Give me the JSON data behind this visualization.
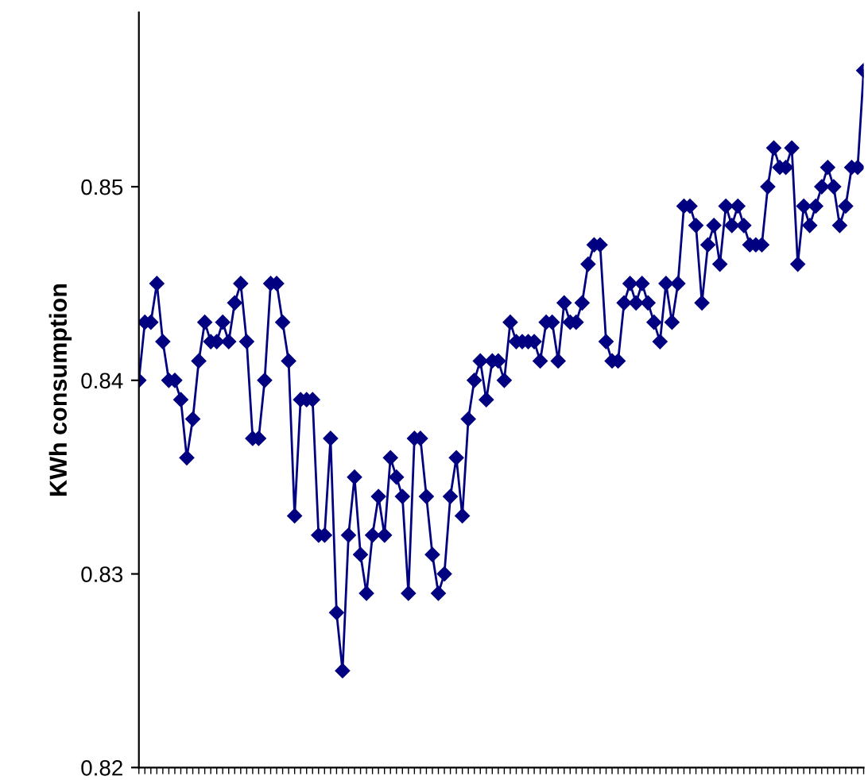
{
  "chart_data": {
    "type": "line",
    "ylabel": "KWh consumption",
    "ylim": [
      0.82,
      0.859
    ],
    "yticks": [
      0.82,
      0.83,
      0.84,
      0.85
    ],
    "tick_labels": "y",
    "grid": false,
    "legend": false,
    "marker": "diamond",
    "line_style": "solid",
    "categories": [
      null,
      null,
      null,
      null,
      null,
      null,
      null,
      null,
      null,
      null,
      null,
      null,
      null,
      null,
      null,
      null,
      null,
      null,
      null,
      null,
      null,
      null,
      null,
      null,
      null,
      null,
      null,
      null,
      null,
      null,
      null,
      null,
      null,
      null,
      null,
      null,
      null,
      null,
      null,
      null,
      null,
      null,
      null,
      null,
      null,
      null,
      null,
      null,
      null,
      null,
      null,
      null,
      null,
      null,
      null,
      null,
      null,
      null,
      null,
      null,
      null,
      null,
      null,
      null,
      null,
      null,
      null,
      null,
      null,
      null,
      null,
      null,
      null,
      null,
      null,
      null,
      null,
      null,
      null,
      null,
      null,
      null,
      null,
      null,
      null,
      null,
      null,
      null,
      null,
      null,
      null,
      null,
      null,
      null,
      null,
      null,
      null,
      null,
      null,
      null,
      null,
      null,
      null,
      null,
      null,
      null,
      null,
      null,
      null,
      null,
      null,
      null,
      null,
      null,
      null,
      null,
      null,
      null,
      null,
      null,
      null,
      null
    ],
    "series": [
      {
        "color": "#000080",
        "values": [
          0.84,
          0.843,
          0.843,
          0.845,
          0.842,
          0.84,
          0.84,
          0.839,
          0.836,
          0.838,
          0.841,
          0.843,
          0.842,
          0.842,
          0.843,
          0.842,
          0.844,
          0.845,
          0.842,
          0.837,
          0.837,
          0.84,
          0.845,
          0.845,
          0.843,
          0.841,
          0.833,
          0.839,
          0.839,
          0.839,
          0.832,
          0.832,
          0.837,
          0.828,
          0.825,
          0.832,
          0.835,
          0.831,
          0.829,
          0.832,
          0.834,
          0.832,
          0.836,
          0.835,
          0.834,
          0.829,
          0.837,
          0.837,
          0.834,
          0.831,
          0.829,
          0.83,
          0.834,
          0.836,
          0.833,
          0.838,
          0.84,
          0.841,
          0.839,
          0.841,
          0.841,
          0.84,
          0.843,
          0.842,
          0.842,
          0.842,
          0.842,
          0.841,
          0.843,
          0.843,
          0.841,
          0.844,
          0.843,
          0.843,
          0.844,
          0.846,
          0.847,
          0.847,
          0.842,
          0.841,
          0.841,
          0.844,
          0.845,
          0.844,
          0.845,
          0.844,
          0.843,
          0.842,
          0.845,
          0.843,
          0.845,
          0.849,
          0.849,
          0.848,
          0.844,
          0.847,
          0.848,
          0.846,
          0.849,
          0.848,
          0.849,
          0.848,
          0.847,
          0.847,
          0.847,
          0.85,
          0.852,
          0.851,
          0.851,
          0.852,
          0.846,
          0.849,
          0.848,
          0.849,
          0.85,
          0.851,
          0.85,
          0.848,
          0.849,
          0.851,
          0.851,
          0.856
        ]
      }
    ]
  }
}
